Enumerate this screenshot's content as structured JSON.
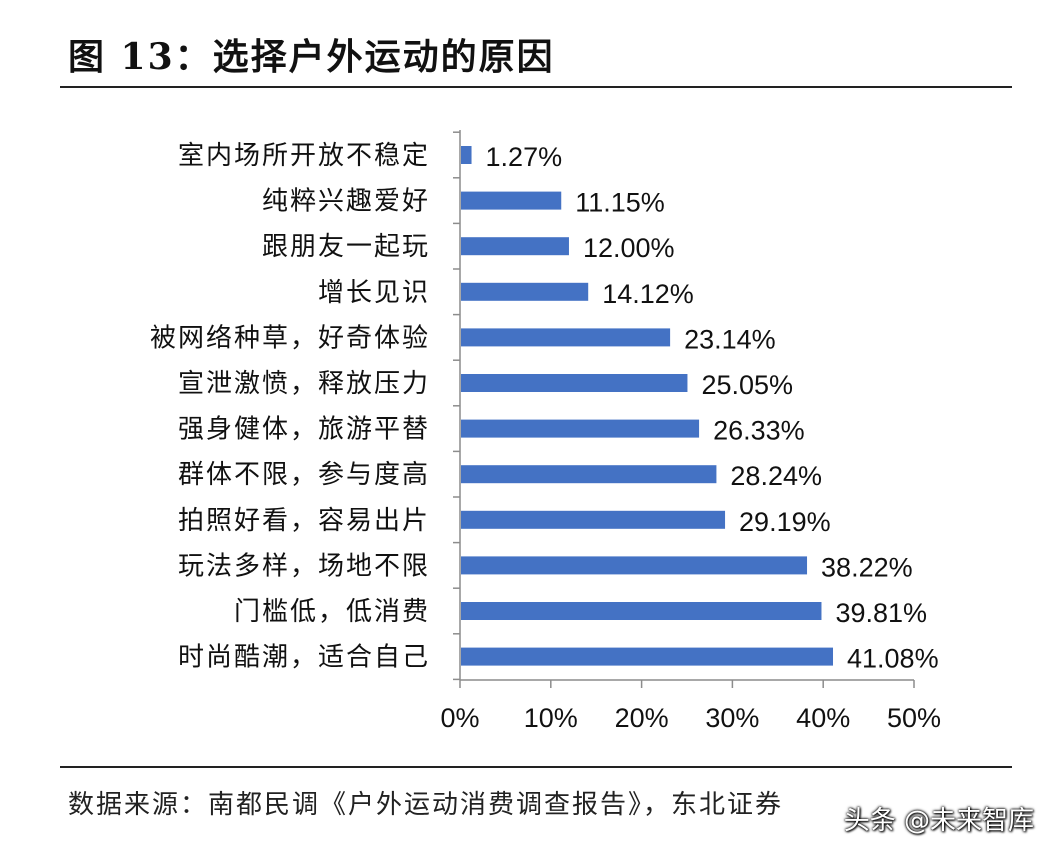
{
  "figure": {
    "title": "图 13：选择户外运动的原因",
    "source": "数据来源：南都民调《户外运动消费调查报告》，东北证券",
    "watermark": "头条 @未来智库"
  },
  "chart_data": {
    "type": "bar",
    "orientation": "horizontal",
    "categories": [
      "室内场所开放不稳定",
      "纯粹兴趣爱好",
      "跟朋友一起玩",
      "增长见识",
      "被网络种草，好奇体验",
      "宣泄激愤，释放压力",
      "强身健体，旅游平替",
      "群体不限，参与度高",
      "拍照好看，容易出片",
      "玩法多样，场地不限",
      "门槛低，低消费",
      "时尚酷潮，适合自己"
    ],
    "values": [
      1.27,
      11.15,
      12.0,
      14.12,
      23.14,
      25.05,
      26.33,
      28.24,
      29.19,
      38.22,
      39.81,
      41.08
    ],
    "value_labels": [
      "1.27%",
      "11.15%",
      "12.00%",
      "14.12%",
      "23.14%",
      "25.05%",
      "26.33%",
      "28.24%",
      "29.19%",
      "38.22%",
      "39.81%",
      "41.08%"
    ],
    "xlim": [
      0,
      50
    ],
    "xticks": [
      0,
      10,
      20,
      30,
      40,
      50
    ],
    "xtick_labels": [
      "0%",
      "10%",
      "20%",
      "30%",
      "40%",
      "50%"
    ],
    "bar_color": "#4472C4",
    "grid": false,
    "legend": "none"
  }
}
